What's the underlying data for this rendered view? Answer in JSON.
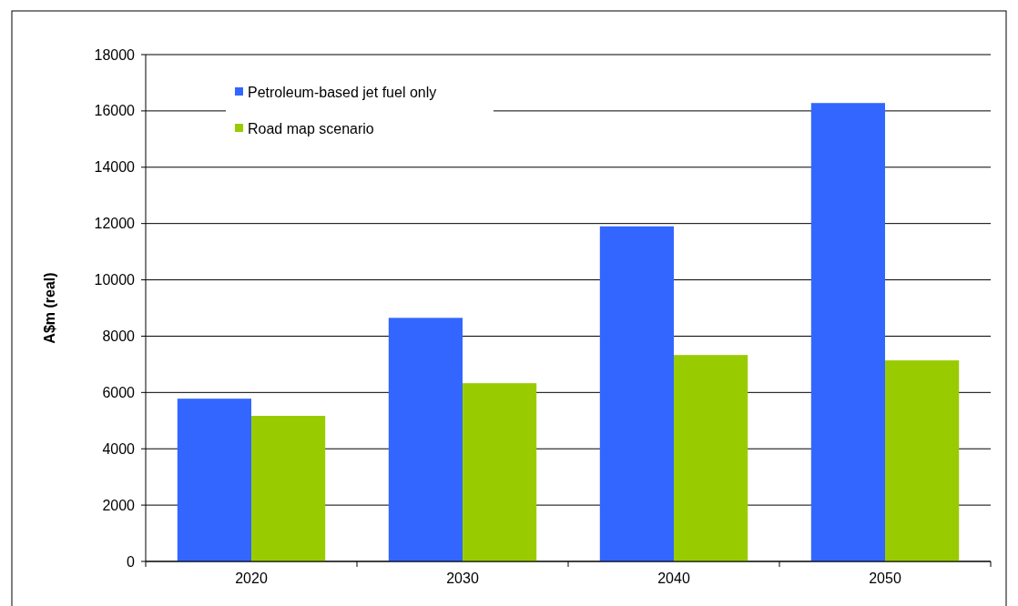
{
  "chart_data": {
    "type": "bar",
    "ylabel": "A$m (real)",
    "categories": [
      "2020",
      "2030",
      "2040",
      "2050"
    ],
    "series": [
      {
        "name": "Petroleum-based jet fuel only",
        "color": "#3366ff",
        "values": [
          5780,
          8650,
          11900,
          16280
        ]
      },
      {
        "name": "Road map scenario",
        "color": "#99cc00",
        "values": [
          5170,
          6330,
          7330,
          7140
        ]
      }
    ],
    "ylim": [
      0,
      18000
    ],
    "yticks": [
      0,
      2000,
      4000,
      6000,
      8000,
      10000,
      12000,
      14000,
      16000,
      18000
    ],
    "grid": "y",
    "legend": "top left"
  }
}
